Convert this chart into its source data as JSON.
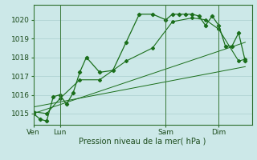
{
  "background_color": "#cce8e8",
  "plot_bg_color": "#cce8e8",
  "line_color": "#1a6e1a",
  "grid_color": "#aacfcf",
  "xlabel": "Pression niveau de la mer( hPa )",
  "ylim": [
    1014.4,
    1020.8
  ],
  "yticks": [
    1015,
    1016,
    1017,
    1018,
    1019,
    1020
  ],
  "xtick_labels": [
    "Ven",
    "Lun",
    "Sam",
    "Dim"
  ],
  "xtick_positions": [
    0,
    2,
    10,
    14
  ],
  "vline_positions": [
    0,
    2,
    10,
    14
  ],
  "xlim": [
    0,
    16.5
  ],
  "s1x": [
    0,
    0.5,
    1.0,
    1.5,
    2.0,
    2.5,
    3.0,
    3.5,
    4.0,
    5.0,
    6.0,
    7.0,
    8.0,
    9.0,
    10.0,
    10.5,
    11.0,
    11.5,
    12.0,
    12.5,
    13.0,
    13.5,
    14.0,
    14.5,
    15.0,
    15.5,
    16.0
  ],
  "s1y": [
    1015.0,
    1014.7,
    1014.6,
    1015.9,
    1016.0,
    1015.5,
    1016.1,
    1017.2,
    1018.0,
    1017.2,
    1017.3,
    1018.8,
    1020.3,
    1020.3,
    1020.0,
    1020.3,
    1020.3,
    1020.3,
    1020.3,
    1020.2,
    1019.7,
    1020.2,
    1019.7,
    1018.6,
    1018.6,
    1019.3,
    1017.8
  ],
  "s2x": [
    0,
    1.0,
    2.0,
    3.5,
    5.0,
    7.0,
    9.0,
    10.5,
    12.0,
    13.0,
    14.0,
    15.5,
    16.0
  ],
  "s2y": [
    1015.1,
    1015.0,
    1015.8,
    1016.8,
    1016.8,
    1017.8,
    1018.5,
    1019.9,
    1020.1,
    1020.0,
    1019.5,
    1017.8,
    1017.9
  ],
  "t1x": [
    0,
    16.0
  ],
  "t1y": [
    1015.0,
    1018.8
  ],
  "t2x": [
    0,
    16.0
  ],
  "t2y": [
    1015.35,
    1017.5
  ]
}
